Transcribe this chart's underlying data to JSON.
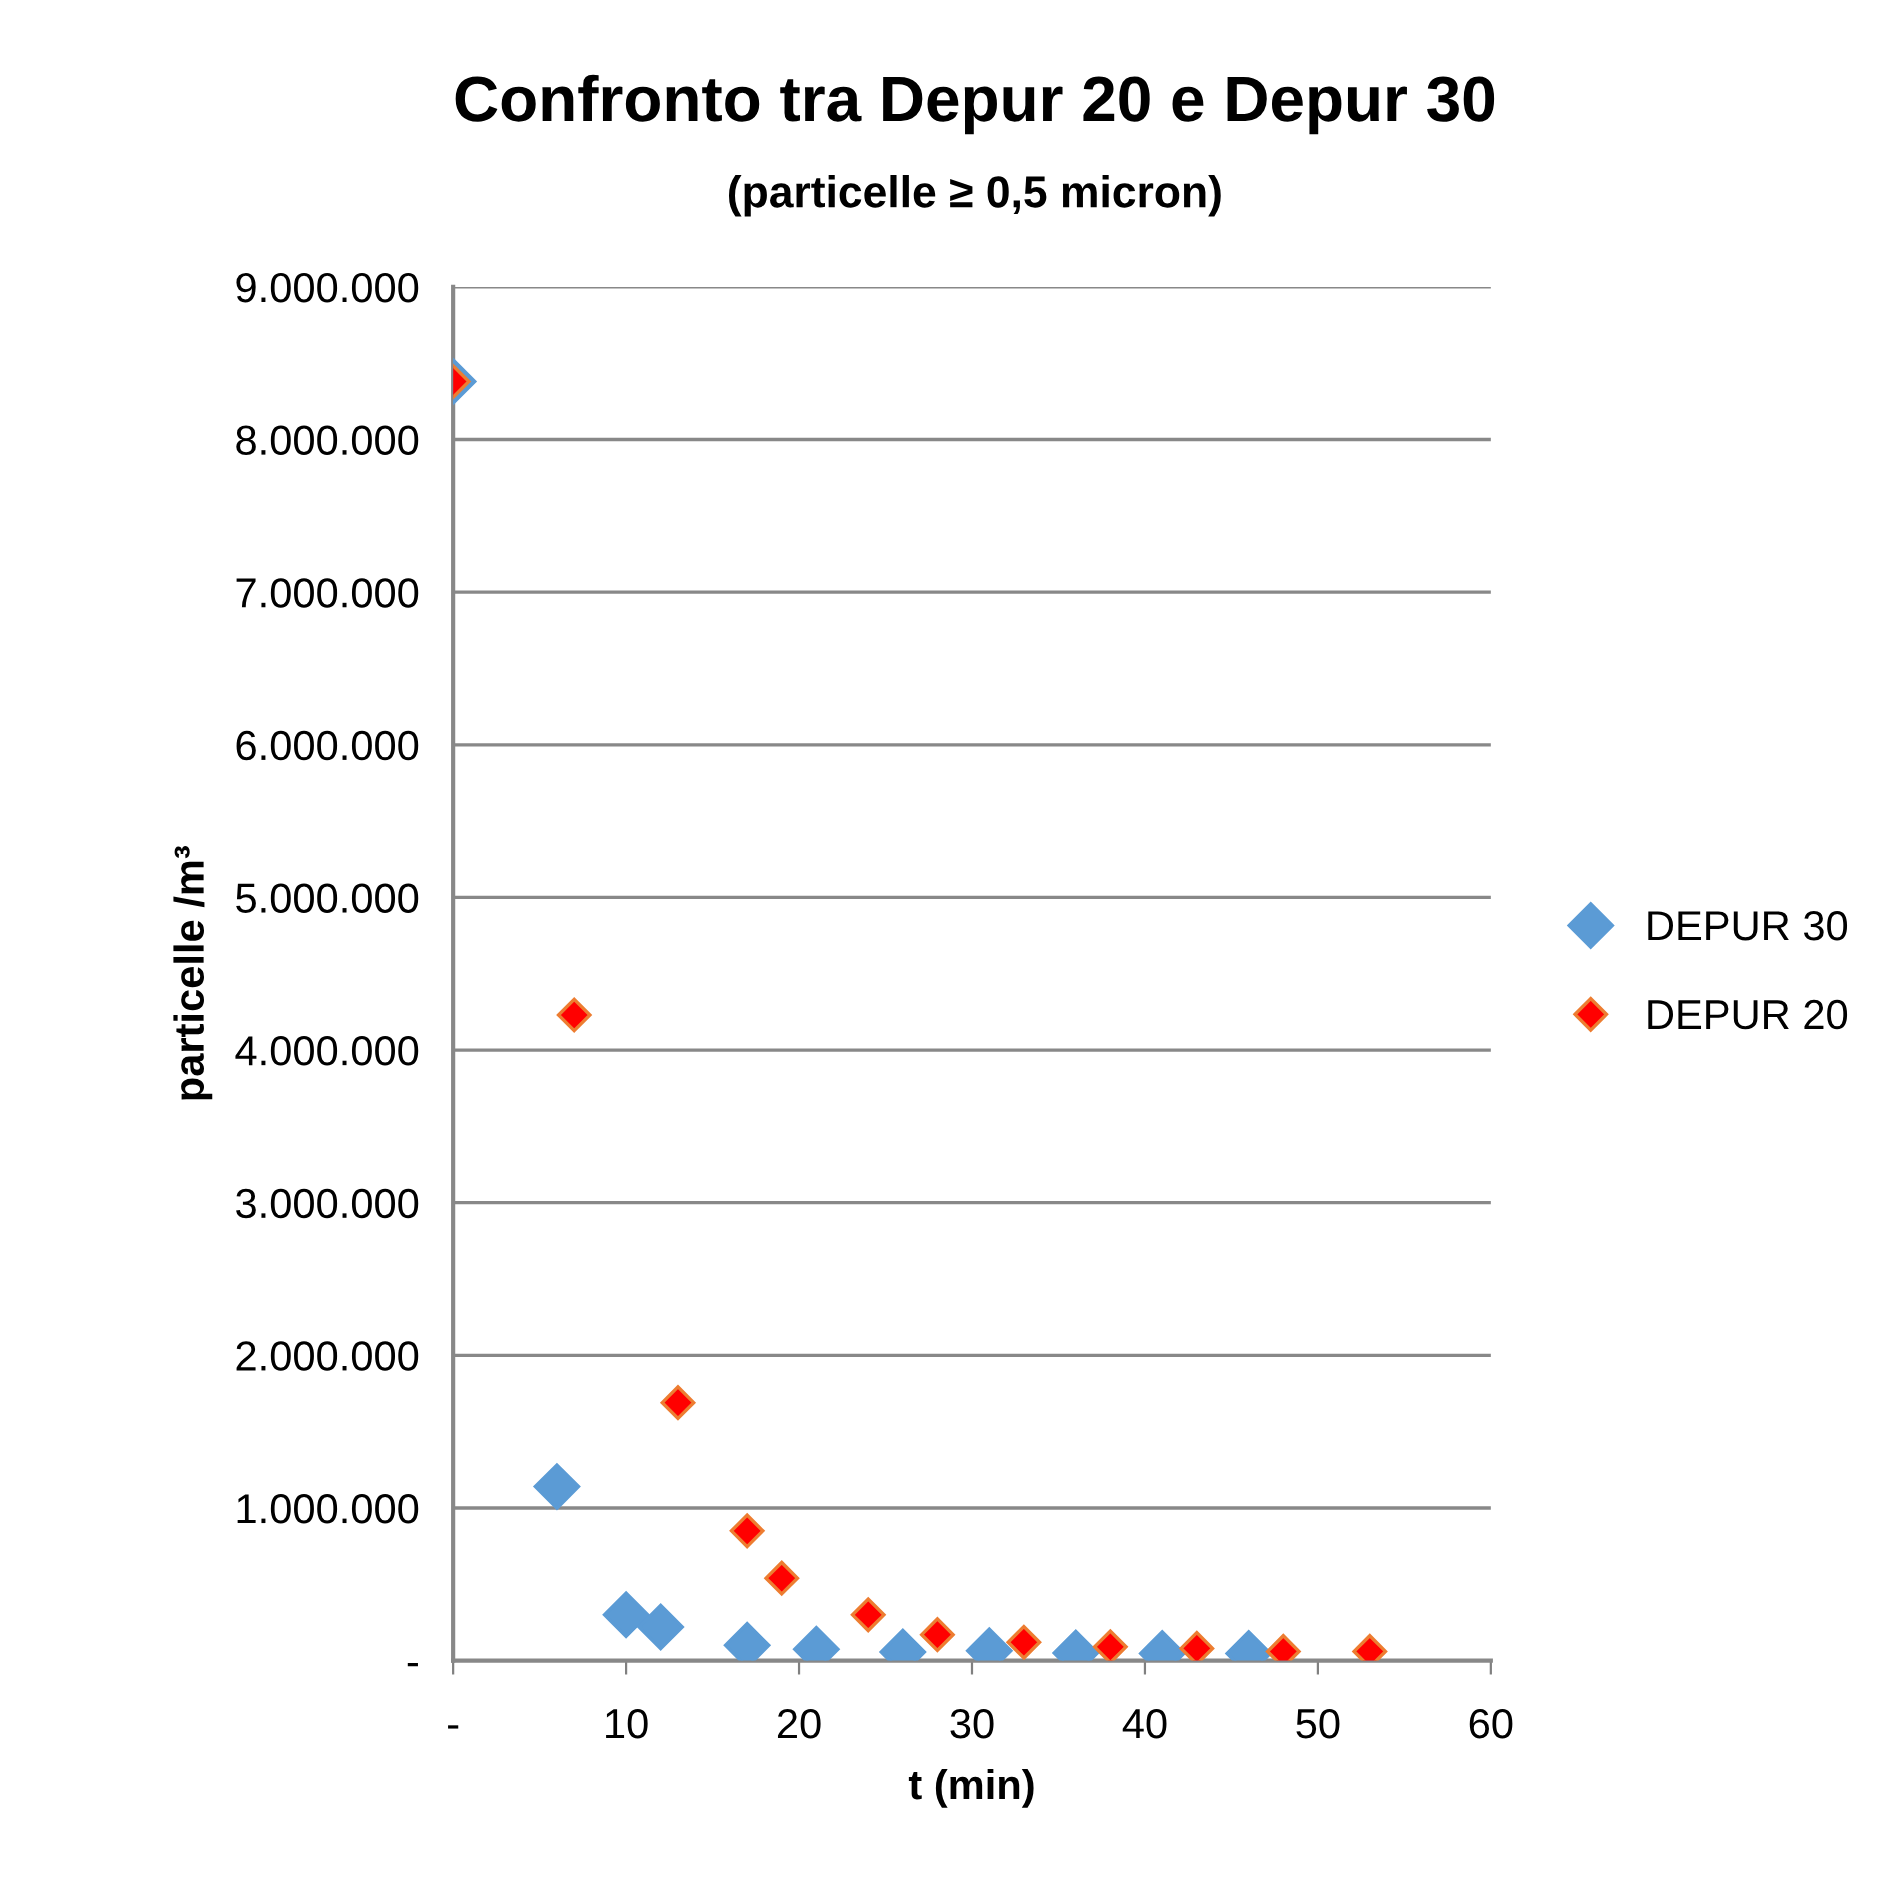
{
  "chart_data": {
    "type": "scatter",
    "title": "Confronto tra Depur 20 e Depur 30",
    "subtitle": "(particelle ≥ 0,5 micron)",
    "xlabel": "t (min)",
    "ylabel": "particelle /m³",
    "xlim": [
      0,
      60
    ],
    "xticks": [
      {
        "value": 0,
        "label": "-"
      },
      10,
      20,
      30,
      40,
      50,
      60
    ],
    "ylim": [
      0,
      9000000
    ],
    "yticks": [
      {
        "value": 0,
        "label": "-"
      },
      {
        "value": 1000000,
        "label": "1.000.000"
      },
      {
        "value": 2000000,
        "label": "2.000.000"
      },
      {
        "value": 3000000,
        "label": "3.000.000"
      },
      {
        "value": 4000000,
        "label": "4.000.000"
      },
      {
        "value": 5000000,
        "label": "5.000.000"
      },
      {
        "value": 6000000,
        "label": "6.000.000"
      },
      {
        "value": 7000000,
        "label": "7.000.000"
      },
      {
        "value": 8000000,
        "label": "8.000.000"
      },
      {
        "value": 9000000,
        "label": "9.000.000"
      }
    ],
    "grid": "y",
    "legend": "right",
    "marker": "diamond",
    "series": [
      {
        "name": "DEPUR 30",
        "color": "#5b9bd5",
        "x": [
          0,
          6,
          10,
          12,
          17,
          21,
          26,
          31,
          36,
          41,
          46
        ],
        "values": [
          8380000,
          1140000,
          300000,
          220000,
          100000,
          75000,
          56000,
          65000,
          50000,
          47000,
          47000
        ]
      },
      {
        "name": "DEPUR 20",
        "color": "#ff0000",
        "x": [
          0,
          7,
          13,
          17,
          19,
          24,
          28,
          33,
          38,
          43,
          48,
          53
        ],
        "values": [
          8380000,
          4230000,
          1690000,
          850000,
          540000,
          300000,
          170000,
          120000,
          90000,
          80000,
          60000,
          60000
        ]
      }
    ]
  }
}
